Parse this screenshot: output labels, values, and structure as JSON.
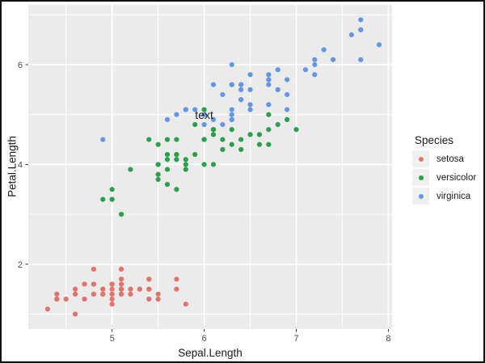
{
  "chart_data": {
    "type": "scatter",
    "title": "",
    "xlabel": "Sepal.Length",
    "ylabel": "Petal.Length",
    "xlim": [
      4.09,
      8.04
    ],
    "ylim": [
      0.7,
      7.2
    ],
    "x_major_ticks": [
      5,
      6,
      7,
      8
    ],
    "x_minor_ticks": [
      4.5,
      5.5,
      6.5,
      7.5
    ],
    "y_major_ticks": [
      2,
      4,
      6
    ],
    "y_minor_ticks": [
      1,
      3,
      5,
      7
    ],
    "grid": true,
    "panel_background": "#EBEBEB",
    "grid_color": "#FFFFFF",
    "tick_color": "#333333",
    "tick_label_color": "#4D4D4D",
    "legend_position": "right",
    "annotation": {
      "label": "text",
      "x": 6,
      "y": 5,
      "color": "#1A1A1A"
    },
    "series": [
      {
        "name": "setosa",
        "color": "#E0736C",
        "points": [
          [
            5.1,
            1.4
          ],
          [
            4.9,
            1.4
          ],
          [
            4.7,
            1.3
          ],
          [
            4.6,
            1.5
          ],
          [
            5.0,
            1.4
          ],
          [
            5.4,
            1.7
          ],
          [
            4.6,
            1.4
          ],
          [
            5.0,
            1.5
          ],
          [
            4.4,
            1.4
          ],
          [
            4.9,
            1.5
          ],
          [
            5.4,
            1.5
          ],
          [
            4.8,
            1.6
          ],
          [
            4.8,
            1.4
          ],
          [
            4.3,
            1.1
          ],
          [
            5.8,
            1.2
          ],
          [
            5.7,
            1.5
          ],
          [
            5.4,
            1.3
          ],
          [
            5.1,
            1.4
          ],
          [
            5.7,
            1.7
          ],
          [
            5.1,
            1.5
          ],
          [
            5.4,
            1.7
          ],
          [
            5.1,
            1.5
          ],
          [
            4.6,
            1.0
          ],
          [
            5.1,
            1.7
          ],
          [
            4.8,
            1.9
          ],
          [
            5.0,
            1.6
          ],
          [
            5.0,
            1.6
          ],
          [
            5.2,
            1.5
          ],
          [
            5.2,
            1.4
          ],
          [
            4.7,
            1.6
          ],
          [
            4.8,
            1.6
          ],
          [
            5.4,
            1.5
          ],
          [
            5.2,
            1.5
          ],
          [
            5.5,
            1.4
          ],
          [
            4.9,
            1.5
          ],
          [
            5.0,
            1.2
          ],
          [
            5.5,
            1.3
          ],
          [
            4.9,
            1.4
          ],
          [
            4.4,
            1.3
          ],
          [
            5.1,
            1.5
          ],
          [
            5.0,
            1.3
          ],
          [
            4.5,
            1.3
          ],
          [
            4.4,
            1.3
          ],
          [
            5.0,
            1.6
          ],
          [
            5.1,
            1.9
          ],
          [
            4.8,
            1.4
          ],
          [
            5.1,
            1.6
          ],
          [
            4.6,
            1.4
          ],
          [
            5.3,
            1.5
          ],
          [
            5.0,
            1.4
          ]
        ]
      },
      {
        "name": "versicolor",
        "color": "#2BA04B",
        "points": [
          [
            7.0,
            4.7
          ],
          [
            6.4,
            4.5
          ],
          [
            6.9,
            4.9
          ],
          [
            5.5,
            4.0
          ],
          [
            6.5,
            4.6
          ],
          [
            5.7,
            4.5
          ],
          [
            6.3,
            4.7
          ],
          [
            4.9,
            3.3
          ],
          [
            6.6,
            4.6
          ],
          [
            5.2,
            3.9
          ],
          [
            5.0,
            3.5
          ],
          [
            5.9,
            4.2
          ],
          [
            6.0,
            4.0
          ],
          [
            6.1,
            4.7
          ],
          [
            5.6,
            3.6
          ],
          [
            6.7,
            4.4
          ],
          [
            5.6,
            4.5
          ],
          [
            5.8,
            4.1
          ],
          [
            6.2,
            4.5
          ],
          [
            5.6,
            3.9
          ],
          [
            5.9,
            4.8
          ],
          [
            6.1,
            4.0
          ],
          [
            6.3,
            4.9
          ],
          [
            6.1,
            4.7
          ],
          [
            6.4,
            4.3
          ],
          [
            6.6,
            4.4
          ],
          [
            6.8,
            4.8
          ],
          [
            6.7,
            5.0
          ],
          [
            6.0,
            4.5
          ],
          [
            5.7,
            3.5
          ],
          [
            5.5,
            3.8
          ],
          [
            5.5,
            3.7
          ],
          [
            5.8,
            3.9
          ],
          [
            6.0,
            5.1
          ],
          [
            5.4,
            4.5
          ],
          [
            6.0,
            4.5
          ],
          [
            6.7,
            4.7
          ],
          [
            6.3,
            4.4
          ],
          [
            5.6,
            4.1
          ],
          [
            5.5,
            4.0
          ],
          [
            5.5,
            4.4
          ],
          [
            6.1,
            4.6
          ],
          [
            5.8,
            4.0
          ],
          [
            5.0,
            3.3
          ],
          [
            5.6,
            4.2
          ],
          [
            5.7,
            4.2
          ],
          [
            5.7,
            4.2
          ],
          [
            6.2,
            4.3
          ],
          [
            5.1,
            3.0
          ],
          [
            5.7,
            4.1
          ]
        ]
      },
      {
        "name": "virginica",
        "color": "#6497E2",
        "points": [
          [
            6.3,
            6.0
          ],
          [
            5.8,
            5.1
          ],
          [
            7.1,
            5.9
          ],
          [
            6.3,
            5.6
          ],
          [
            6.5,
            5.8
          ],
          [
            7.6,
            6.6
          ],
          [
            4.9,
            4.5
          ],
          [
            7.3,
            6.3
          ],
          [
            6.7,
            5.8
          ],
          [
            7.2,
            6.1
          ],
          [
            6.5,
            5.1
          ],
          [
            6.4,
            5.3
          ],
          [
            6.8,
            5.5
          ],
          [
            5.7,
            5.0
          ],
          [
            5.8,
            5.1
          ],
          [
            6.4,
            5.3
          ],
          [
            6.5,
            5.5
          ],
          [
            7.7,
            6.7
          ],
          [
            7.7,
            6.9
          ],
          [
            6.0,
            5.0
          ],
          [
            6.9,
            5.7
          ],
          [
            5.6,
            4.9
          ],
          [
            7.7,
            6.7
          ],
          [
            6.3,
            4.9
          ],
          [
            6.7,
            5.7
          ],
          [
            7.2,
            6.0
          ],
          [
            6.2,
            4.8
          ],
          [
            6.1,
            4.9
          ],
          [
            6.4,
            5.6
          ],
          [
            7.2,
            5.8
          ],
          [
            7.4,
            6.1
          ],
          [
            7.9,
            6.4
          ],
          [
            6.4,
            5.6
          ],
          [
            6.3,
            5.1
          ],
          [
            6.1,
            5.6
          ],
          [
            7.7,
            6.1
          ],
          [
            6.3,
            5.6
          ],
          [
            6.4,
            5.5
          ],
          [
            6.0,
            4.8
          ],
          [
            6.9,
            5.4
          ],
          [
            6.7,
            5.6
          ],
          [
            6.9,
            5.1
          ],
          [
            5.8,
            5.1
          ],
          [
            6.8,
            5.9
          ],
          [
            6.7,
            5.7
          ],
          [
            6.7,
            5.2
          ],
          [
            6.3,
            5.0
          ],
          [
            6.5,
            5.2
          ],
          [
            6.2,
            5.4
          ],
          [
            5.9,
            5.1
          ]
        ]
      }
    ]
  },
  "legend": {
    "title": "Species",
    "key_fill": "#F0F0F0",
    "items": [
      {
        "label": "setosa"
      },
      {
        "label": "versicolor"
      },
      {
        "label": "virginica"
      }
    ]
  }
}
